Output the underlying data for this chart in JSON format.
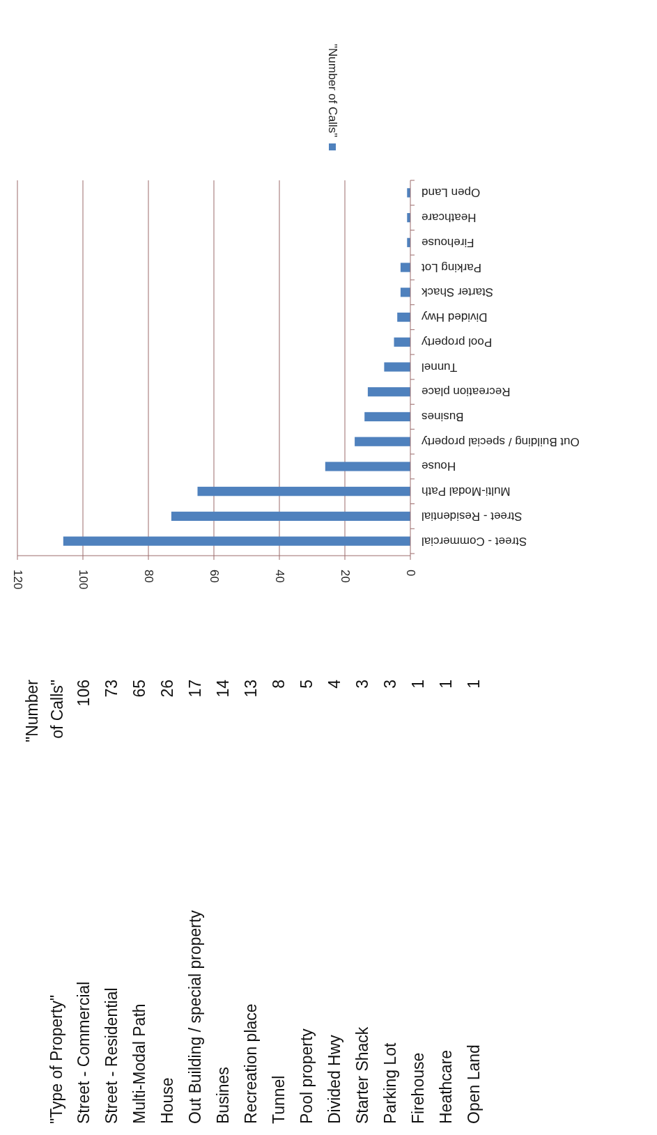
{
  "chart_data": [
    {
      "type": "other",
      "annotations": [
        "\"Type of Property\""
      ],
      "categories": [
        "Street -  Commercial",
        "Street - Residential",
        "Multi-Modal Path",
        "House",
        "Out Building / special property",
        "Busines",
        "Recreation place",
        "Tunnel",
        "Pool property",
        "Divided Hwy",
        "Starter Shack",
        "Parking Lot",
        "Firehouse",
        "Heathcare",
        "Open Land"
      ],
      "series": [
        {
          "name": "\"Number of Calls\"",
          "values": [
            106,
            73,
            65,
            26,
            17,
            14,
            13,
            8,
            5,
            4,
            3,
            3,
            1,
            1,
            1
          ],
          "value_labels": [
            "106",
            "73",
            "65",
            "26",
            "17",
            "14",
            "13",
            "8",
            "5",
            "4",
            "3",
            "3",
            "1",
            "1",
            "1"
          ]
        }
      ]
    },
    {
      "type": "bar",
      "orientation": "horizontal",
      "categories": [
        "Open Land",
        "Heathcare",
        "Firehouse",
        "Parking Lot",
        "Starter Shack",
        "Divided Hwy",
        "Pool property",
        "Tunnel",
        "Recreation place",
        "Busines",
        "Out Building / special property",
        "House",
        "Multi-Modal Path",
        "Street - Residential",
        "Street -  Commercial"
      ],
      "series": [
        {
          "name": "\"Number of Calls\"",
          "color": "#4f81bd",
          "values": [
            1,
            1,
            1,
            3,
            3,
            4,
            5,
            8,
            13,
            14,
            17,
            26,
            65,
            73,
            106
          ]
        }
      ],
      "xlim": [
        120,
        0
      ],
      "xticks": [
        0,
        20,
        40,
        60,
        80,
        100,
        120
      ],
      "grid": "x",
      "legend": "top right"
    }
  ]
}
